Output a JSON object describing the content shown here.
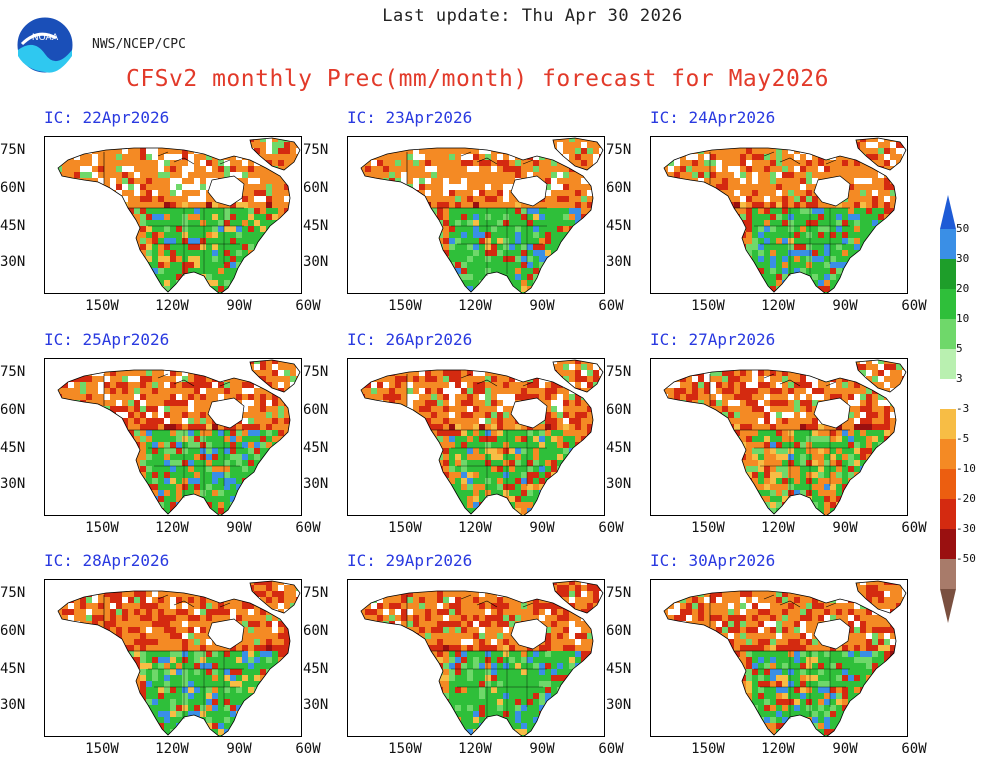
{
  "header": {
    "last_update": "Last update: Thu Apr 30 2026",
    "agency": "NWS/NCEP/CPC",
    "title": "CFSv2 monthly Prec(mm/month) forecast for May2026"
  },
  "panels": [
    {
      "ic": "IC: 22Apr2026",
      "pattern": 0
    },
    {
      "ic": "IC: 23Apr2026",
      "pattern": 1
    },
    {
      "ic": "IC: 24Apr2026",
      "pattern": 2
    },
    {
      "ic": "IC: 25Apr2026",
      "pattern": 3
    },
    {
      "ic": "IC: 26Apr2026",
      "pattern": 4
    },
    {
      "ic": "IC: 27Apr2026",
      "pattern": 5
    },
    {
      "ic": "IC: 28Apr2026",
      "pattern": 6
    },
    {
      "ic": "IC: 29Apr2026",
      "pattern": 7
    },
    {
      "ic": "IC: 30Apr2026",
      "pattern": 8
    }
  ],
  "axes": {
    "lat_labels": [
      "75N",
      "60N",
      "45N",
      "30N"
    ],
    "lon_labels": [
      "150W",
      "120W",
      "90W",
      "60W"
    ]
  },
  "legend": {
    "labels": [
      "50",
      "30",
      "20",
      "10",
      "5",
      "3",
      "-3",
      "-5",
      "-10",
      "-20",
      "-30",
      "-50"
    ],
    "colors": [
      "#1e5bd6",
      "#3a8fe6",
      "#1e9e2a",
      "#2fbf3a",
      "#6fd86a",
      "#b9f0b0",
      "#ffffff",
      "#f7bd45",
      "#f48a24",
      "#ec5e10",
      "#d42a10",
      "#9a1010",
      "#a87b6a",
      "#7a5040"
    ]
  }
}
